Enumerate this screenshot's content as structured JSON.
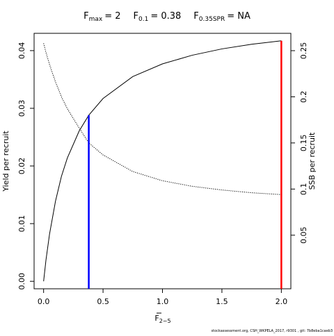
{
  "chart_data": {
    "type": "line",
    "title_parts": [
      {
        "base": "F",
        "sub": "max",
        "rest": "= 2"
      },
      {
        "base": "F",
        "sub": "0.1",
        "rest": "= 0.38"
      },
      {
        "base": "F",
        "sub": "0.35SPR",
        "rest": "= NA"
      }
    ],
    "x_label": {
      "base": "F",
      "sub": "2−5"
    },
    "y_label": "Yield per recruit",
    "y2_label": "SSB per recruit",
    "footnote": "stockassessment.org, CSH_WKPELA_2017, r9301 , git: 7b8eba1caeb3",
    "x": [
      0,
      0.02,
      0.05,
      0.1,
      0.15,
      0.2,
      0.3,
      0.38,
      0.5,
      0.75,
      1,
      1.25,
      1.5,
      1.75,
      2
    ],
    "series": [
      {
        "color": "#000000",
        "dash": "solid",
        "values": [
          0,
          0.0037,
          0.0082,
          0.0139,
          0.0182,
          0.0214,
          0.0261,
          0.0288,
          0.0317,
          0.0355,
          0.0377,
          0.0392,
          0.0403,
          0.0411,
          0.0417
        ]
      },
      {
        "color": "#000000",
        "dash": "dotted",
        "axis": "y2",
        "values": [
          0.258,
          0.248,
          0.235,
          0.216,
          0.2,
          0.187,
          0.166,
          0.15,
          0.137,
          0.119,
          0.109,
          0.103,
          0.099,
          0.096,
          0.094
        ]
      }
    ],
    "reference_lines": [
      {
        "x": 0.38,
        "y": 0.0288,
        "color": "#0000ff"
      },
      {
        "x": 2,
        "y": 0.0417,
        "color": "#ff0000"
      }
    ],
    "xlim": [
      -0.08,
      2.08
    ],
    "xticks": [
      {
        "value": 0,
        "label": "0.0"
      },
      {
        "value": 0.5,
        "label": "0.5"
      },
      {
        "value": 1,
        "label": "1.0"
      },
      {
        "value": 1.5,
        "label": "1.5"
      },
      {
        "value": 2,
        "label": "2.0"
      }
    ],
    "ylim": [
      -0.0013,
      0.043
    ],
    "yticks": [
      {
        "value": 0,
        "label": "0.00"
      },
      {
        "value": 0.01,
        "label": "0.01"
      },
      {
        "value": 0.02,
        "label": "0.02"
      },
      {
        "value": 0.03,
        "label": "0.03"
      },
      {
        "value": 0.04,
        "label": "0.04"
      }
    ],
    "y2lim": [
      -0.0081,
      0.2688
    ],
    "y2ticks": [
      0.05,
      0.1,
      0.15,
      0.2,
      0.25
    ]
  }
}
